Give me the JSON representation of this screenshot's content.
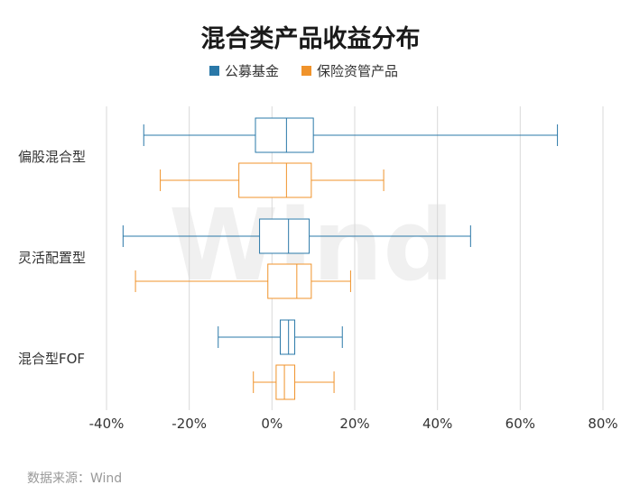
{
  "chart_data": {
    "type": "boxplot",
    "title": "混合类产品收益分布",
    "categories": [
      "偏股混合型",
      "灵活配置型",
      "混合型FOF"
    ],
    "series": [
      {
        "name": "公募基金",
        "color": "#2a78a8",
        "boxes": [
          {
            "min": -31,
            "q1": -4,
            "median": 3.5,
            "q3": 10,
            "max": 69
          },
          {
            "min": -36,
            "q1": -3,
            "median": 4,
            "q3": 9,
            "max": 48
          },
          {
            "min": -13,
            "q1": 2,
            "median": 4,
            "q3": 5.5,
            "max": 17
          }
        ]
      },
      {
        "name": "保险资管产品",
        "color": "#f0932b",
        "boxes": [
          {
            "min": -27,
            "q1": -8,
            "median": 3.5,
            "q3": 9.5,
            "max": 27
          },
          {
            "min": -33,
            "q1": -1,
            "median": 6,
            "q3": 9.5,
            "max": 19
          },
          {
            "min": -4.5,
            "q1": 1,
            "median": 3,
            "q3": 5.5,
            "max": 15
          }
        ]
      }
    ],
    "x_ticks": [
      "-40%",
      "-20%",
      "0%",
      "20%",
      "40%",
      "60%",
      "80%"
    ],
    "x_tick_values": [
      -40,
      -20,
      0,
      20,
      40,
      60,
      80
    ],
    "xlim": [
      -40,
      80
    ],
    "xlabel": "",
    "ylabel": "",
    "grid": true,
    "legend_position": "top-center"
  },
  "source_text": "数据来源：Wind",
  "watermark_text": "Wind"
}
